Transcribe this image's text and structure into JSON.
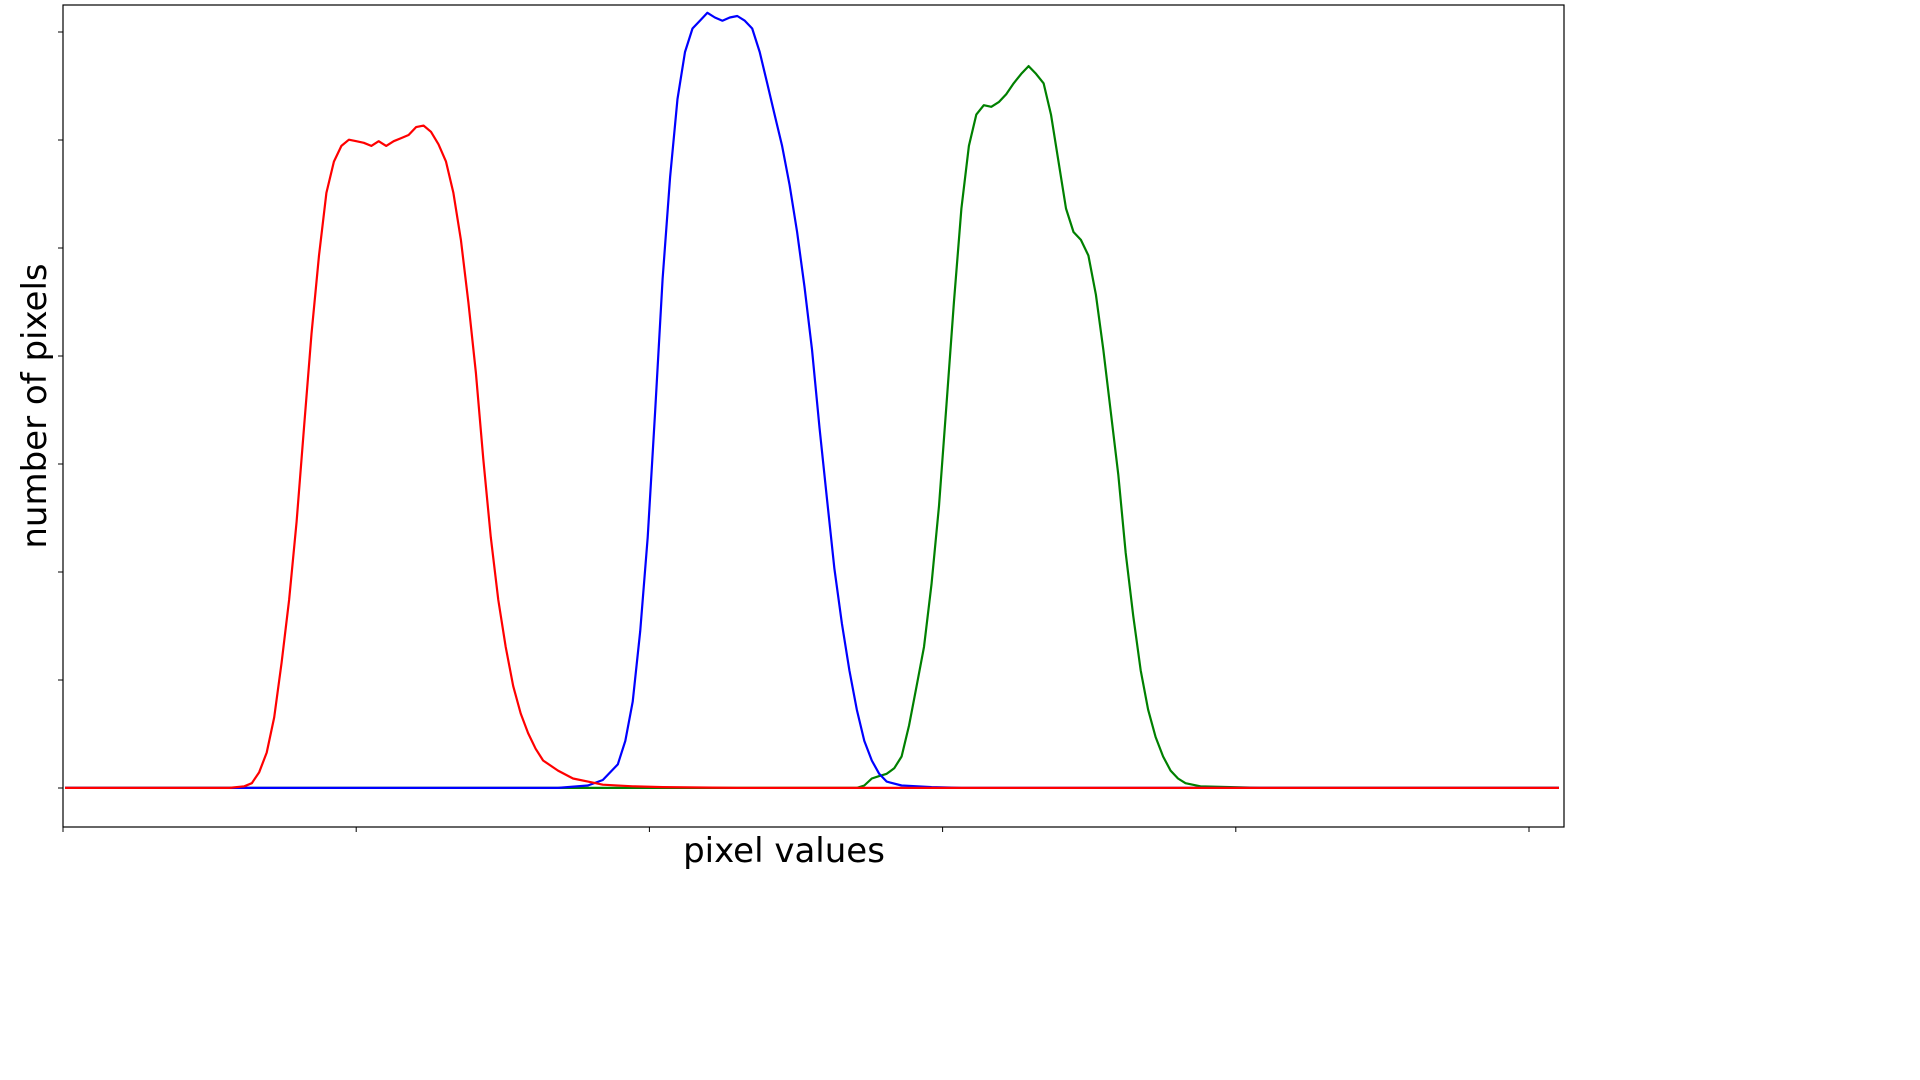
{
  "chart_data": {
    "type": "line",
    "xlabel": "pixel values",
    "ylabel": "number of pixels",
    "xlim": [
      0,
      1
    ],
    "ylim": [
      -0.05,
      1.0
    ],
    "x_tick_count": 6,
    "y_tick_count": 8,
    "grid": false,
    "legend": "none",
    "series": [
      {
        "color": "#ff0000",
        "points": [
          [
            0,
            0
          ],
          [
            0.11,
            0
          ],
          [
            0.12,
            0.002
          ],
          [
            0.125,
            0.006
          ],
          [
            0.13,
            0.02
          ],
          [
            0.135,
            0.045
          ],
          [
            0.14,
            0.09
          ],
          [
            0.145,
            0.16
          ],
          [
            0.15,
            0.24
          ],
          [
            0.155,
            0.34
          ],
          [
            0.16,
            0.46
          ],
          [
            0.165,
            0.58
          ],
          [
            0.17,
            0.68
          ],
          [
            0.175,
            0.76
          ],
          [
            0.18,
            0.8
          ],
          [
            0.185,
            0.82
          ],
          [
            0.19,
            0.828
          ],
          [
            0.195,
            0.826
          ],
          [
            0.2,
            0.824
          ],
          [
            0.205,
            0.82
          ],
          [
            0.21,
            0.826
          ],
          [
            0.215,
            0.82
          ],
          [
            0.22,
            0.826
          ],
          [
            0.225,
            0.83
          ],
          [
            0.23,
            0.834
          ],
          [
            0.235,
            0.844
          ],
          [
            0.24,
            0.846
          ],
          [
            0.245,
            0.838
          ],
          [
            0.25,
            0.822
          ],
          [
            0.255,
            0.8
          ],
          [
            0.26,
            0.76
          ],
          [
            0.265,
            0.7
          ],
          [
            0.27,
            0.62
          ],
          [
            0.275,
            0.53
          ],
          [
            0.28,
            0.42
          ],
          [
            0.285,
            0.32
          ],
          [
            0.29,
            0.24
          ],
          [
            0.295,
            0.18
          ],
          [
            0.3,
            0.13
          ],
          [
            0.305,
            0.095
          ],
          [
            0.31,
            0.07
          ],
          [
            0.315,
            0.05
          ],
          [
            0.32,
            0.035
          ],
          [
            0.33,
            0.022
          ],
          [
            0.34,
            0.012
          ],
          [
            0.35,
            0.008
          ],
          [
            0.36,
            0.004
          ],
          [
            0.38,
            0.002
          ],
          [
            0.4,
            0.001
          ],
          [
            0.45,
            0
          ],
          [
            1,
            0
          ]
        ]
      },
      {
        "color": "#0000ff",
        "points": [
          [
            0,
            0
          ],
          [
            0.33,
            0
          ],
          [
            0.35,
            0.003
          ],
          [
            0.36,
            0.01
          ],
          [
            0.37,
            0.03
          ],
          [
            0.375,
            0.06
          ],
          [
            0.38,
            0.11
          ],
          [
            0.385,
            0.2
          ],
          [
            0.39,
            0.32
          ],
          [
            0.395,
            0.48
          ],
          [
            0.4,
            0.65
          ],
          [
            0.405,
            0.78
          ],
          [
            0.41,
            0.88
          ],
          [
            0.415,
            0.94
          ],
          [
            0.42,
            0.97
          ],
          [
            0.425,
            0.98
          ],
          [
            0.43,
            0.99
          ],
          [
            0.435,
            0.984
          ],
          [
            0.44,
            0.98
          ],
          [
            0.445,
            0.984
          ],
          [
            0.45,
            0.986
          ],
          [
            0.455,
            0.98
          ],
          [
            0.46,
            0.97
          ],
          [
            0.465,
            0.94
          ],
          [
            0.47,
            0.9
          ],
          [
            0.475,
            0.86
          ],
          [
            0.48,
            0.82
          ],
          [
            0.485,
            0.77
          ],
          [
            0.49,
            0.71
          ],
          [
            0.495,
            0.64
          ],
          [
            0.5,
            0.56
          ],
          [
            0.505,
            0.46
          ],
          [
            0.51,
            0.37
          ],
          [
            0.515,
            0.28
          ],
          [
            0.52,
            0.21
          ],
          [
            0.525,
            0.15
          ],
          [
            0.53,
            0.1
          ],
          [
            0.535,
            0.06
          ],
          [
            0.54,
            0.035
          ],
          [
            0.545,
            0.018
          ],
          [
            0.55,
            0.008
          ],
          [
            0.56,
            0.003
          ],
          [
            0.58,
            0.001
          ],
          [
            0.6,
            0
          ],
          [
            1,
            0
          ]
        ]
      },
      {
        "color": "#008000",
        "points": [
          [
            0,
            0
          ],
          [
            0.53,
            0
          ],
          [
            0.535,
            0.003
          ],
          [
            0.54,
            0.012
          ],
          [
            0.545,
            0.015
          ],
          [
            0.55,
            0.018
          ],
          [
            0.555,
            0.025
          ],
          [
            0.56,
            0.04
          ],
          [
            0.565,
            0.08
          ],
          [
            0.57,
            0.13
          ],
          [
            0.575,
            0.18
          ],
          [
            0.58,
            0.26
          ],
          [
            0.585,
            0.36
          ],
          [
            0.59,
            0.49
          ],
          [
            0.595,
            0.62
          ],
          [
            0.6,
            0.74
          ],
          [
            0.605,
            0.82
          ],
          [
            0.61,
            0.86
          ],
          [
            0.615,
            0.872
          ],
          [
            0.62,
            0.87
          ],
          [
            0.625,
            0.876
          ],
          [
            0.63,
            0.886
          ],
          [
            0.635,
            0.9
          ],
          [
            0.64,
            0.912
          ],
          [
            0.645,
            0.922
          ],
          [
            0.65,
            0.912
          ],
          [
            0.655,
            0.9
          ],
          [
            0.66,
            0.86
          ],
          [
            0.665,
            0.8
          ],
          [
            0.67,
            0.74
          ],
          [
            0.675,
            0.71
          ],
          [
            0.68,
            0.7
          ],
          [
            0.685,
            0.68
          ],
          [
            0.69,
            0.63
          ],
          [
            0.695,
            0.56
          ],
          [
            0.7,
            0.48
          ],
          [
            0.705,
            0.4
          ],
          [
            0.71,
            0.3
          ],
          [
            0.715,
            0.22
          ],
          [
            0.72,
            0.15
          ],
          [
            0.725,
            0.1
          ],
          [
            0.73,
            0.065
          ],
          [
            0.735,
            0.04
          ],
          [
            0.74,
            0.022
          ],
          [
            0.745,
            0.012
          ],
          [
            0.75,
            0.006
          ],
          [
            0.76,
            0.002
          ],
          [
            0.78,
            0.001
          ],
          [
            0.8,
            0
          ],
          [
            1,
            0
          ]
        ]
      }
    ]
  }
}
